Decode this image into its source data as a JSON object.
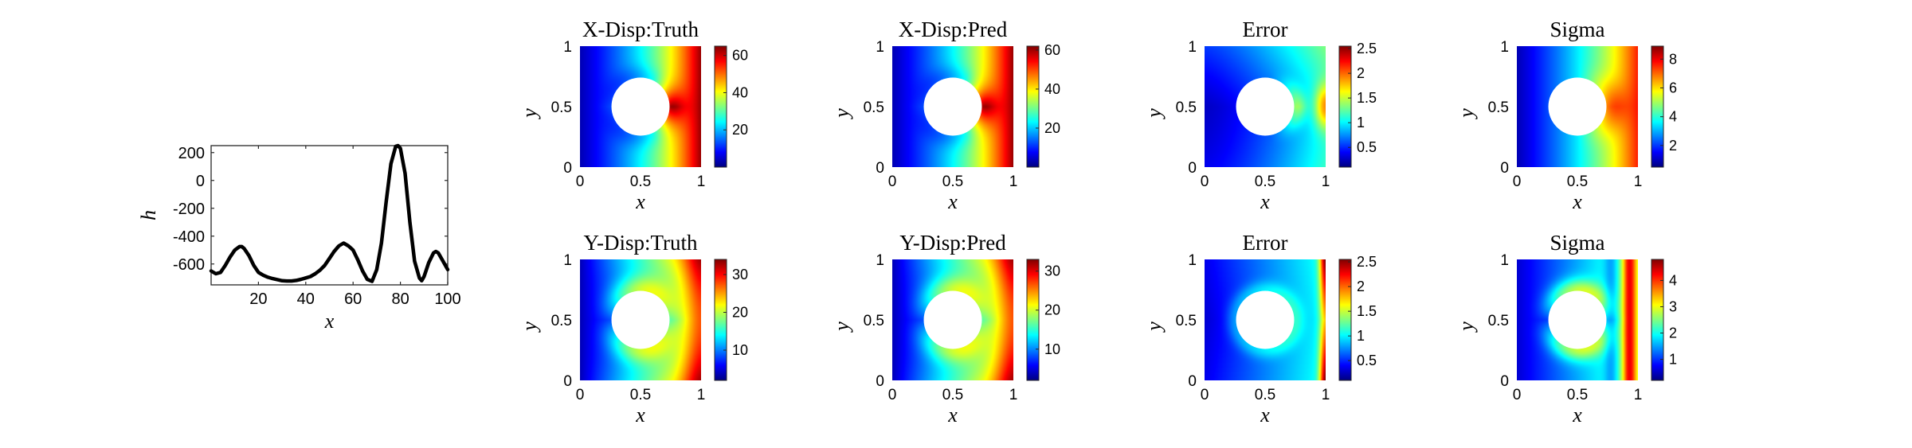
{
  "chart_data": [
    {
      "type": "line",
      "id": "h-profile",
      "xlabel": "x",
      "ylabel": "h",
      "xlim": [
        0,
        100
      ],
      "ylim": [
        -750,
        250
      ],
      "xticks": [
        20,
        40,
        60,
        80,
        100
      ],
      "yticks": [
        200,
        0,
        -200,
        -400,
        -600
      ],
      "grid": false,
      "series": [
        {
          "color": "#000000",
          "x": [
            0,
            2,
            4,
            6,
            8,
            10,
            12,
            13,
            14,
            16,
            18,
            20,
            22,
            24,
            26,
            28,
            30,
            32,
            34,
            36,
            38,
            40,
            42,
            44,
            46,
            48,
            50,
            52,
            54,
            56,
            58,
            59,
            60,
            62,
            64,
            66,
            68,
            70,
            72,
            74,
            76,
            78,
            79,
            80,
            82,
            84,
            86,
            88,
            89,
            90,
            92,
            94,
            95,
            96,
            98,
            100
          ],
          "values": [
            -650,
            -670,
            -660,
            -610,
            -550,
            -500,
            -475,
            -475,
            -490,
            -540,
            -610,
            -660,
            -680,
            -695,
            -705,
            -712,
            -720,
            -722,
            -722,
            -718,
            -710,
            -700,
            -690,
            -670,
            -645,
            -610,
            -560,
            -510,
            -470,
            -450,
            -470,
            -485,
            -500,
            -570,
            -650,
            -710,
            -725,
            -640,
            -450,
            -150,
            120,
            245,
            250,
            230,
            50,
            -300,
            -580,
            -700,
            -720,
            -690,
            -590,
            -520,
            -510,
            -520,
            -580,
            -640
          ]
        }
      ]
    },
    {
      "type": "heatmap",
      "id": "xdisp-truth",
      "title": "X-Disp:Truth",
      "xlabel": "x",
      "ylabel": "y",
      "xlim": [
        0,
        1
      ],
      "ylim": [
        0,
        1
      ],
      "xticks": [
        0,
        0.5,
        1
      ],
      "yticks": [
        0,
        0.5,
        1
      ],
      "colormap": "jet",
      "hole": {
        "cx": 0.5,
        "cy": 0.5,
        "r": 0.24
      },
      "clim": [
        0,
        65
      ],
      "colorbar_ticks": [
        20,
        40,
        60
      ],
      "field": "xdisp"
    },
    {
      "type": "heatmap",
      "id": "xdisp-pred",
      "title": "X-Disp:Pred",
      "xlabel": "x",
      "ylabel": "y",
      "xlim": [
        0,
        1
      ],
      "ylim": [
        0,
        1
      ],
      "xticks": [
        0,
        0.5,
        1
      ],
      "yticks": [
        0,
        0.5,
        1
      ],
      "colormap": "jet",
      "hole": {
        "cx": 0.5,
        "cy": 0.5,
        "r": 0.24
      },
      "clim": [
        0,
        62
      ],
      "colorbar_ticks": [
        20,
        40,
        60
      ],
      "field": "xdisp"
    },
    {
      "type": "heatmap",
      "id": "xdisp-error",
      "title": "Error",
      "xlabel": "x",
      "ylabel": "y",
      "xlim": [
        0,
        1
      ],
      "ylim": [
        0,
        1
      ],
      "xticks": [
        0,
        0.5,
        1
      ],
      "yticks": [
        0,
        0.5,
        1
      ],
      "colormap": "jet",
      "hole": {
        "cx": 0.5,
        "cy": 0.5,
        "r": 0.24
      },
      "clim": [
        0.1,
        2.55
      ],
      "colorbar_ticks": [
        0.5,
        1,
        1.5,
        2,
        2.5
      ],
      "field": "xerr"
    },
    {
      "type": "heatmap",
      "id": "xdisp-sigma",
      "title": "Sigma",
      "xlabel": "x",
      "ylabel": "y",
      "xlim": [
        0,
        1
      ],
      "ylim": [
        0,
        1
      ],
      "xticks": [
        0,
        0.5,
        1
      ],
      "yticks": [
        0,
        0.5,
        1
      ],
      "colormap": "jet",
      "hole": {
        "cx": 0.5,
        "cy": 0.5,
        "r": 0.24
      },
      "clim": [
        0.5,
        8.9
      ],
      "colorbar_ticks": [
        2,
        4,
        6,
        8
      ],
      "field": "xsig"
    },
    {
      "type": "heatmap",
      "id": "ydisp-truth",
      "title": "Y-Disp:Truth",
      "xlabel": "x",
      "ylabel": "y",
      "xlim": [
        0,
        1
      ],
      "ylim": [
        0,
        1
      ],
      "xticks": [
        0,
        0.5,
        1
      ],
      "yticks": [
        0,
        0.5,
        1
      ],
      "colormap": "jet",
      "hole": {
        "cx": 0.5,
        "cy": 0.5,
        "r": 0.24
      },
      "clim": [
        2,
        34
      ],
      "colorbar_ticks": [
        10,
        20,
        30
      ],
      "field": "ydisp"
    },
    {
      "type": "heatmap",
      "id": "ydisp-pred",
      "title": "Y-Disp:Pred",
      "xlabel": "x",
      "ylabel": "y",
      "xlim": [
        0,
        1
      ],
      "ylim": [
        0,
        1
      ],
      "xticks": [
        0,
        0.5,
        1
      ],
      "yticks": [
        0,
        0.5,
        1
      ],
      "colormap": "jet",
      "hole": {
        "cx": 0.5,
        "cy": 0.5,
        "r": 0.24
      },
      "clim": [
        2,
        33
      ],
      "colorbar_ticks": [
        10,
        20,
        30
      ],
      "field": "ydisp"
    },
    {
      "type": "heatmap",
      "id": "ydisp-error",
      "title": "Error",
      "xlabel": "x",
      "ylabel": "y",
      "xlim": [
        0,
        1
      ],
      "ylim": [
        0,
        1
      ],
      "xticks": [
        0,
        0.5,
        1
      ],
      "yticks": [
        0,
        0.5,
        1
      ],
      "colormap": "jet",
      "hole": {
        "cx": 0.5,
        "cy": 0.5,
        "r": 0.24
      },
      "clim": [
        0.1,
        2.55
      ],
      "colorbar_ticks": [
        0.5,
        1,
        1.5,
        2,
        2.5
      ],
      "field": "yerr"
    },
    {
      "type": "heatmap",
      "id": "ydisp-sigma",
      "title": "Sigma",
      "xlabel": "x",
      "ylabel": "y",
      "xlim": [
        0,
        1
      ],
      "ylim": [
        0,
        1
      ],
      "xticks": [
        0,
        0.5,
        1
      ],
      "yticks": [
        0,
        0.5,
        1
      ],
      "colormap": "jet",
      "hole": {
        "cx": 0.5,
        "cy": 0.5,
        "r": 0.24
      },
      "clim": [
        0.2,
        4.8
      ],
      "colorbar_ticks": [
        1,
        2,
        3,
        4
      ],
      "field": "ysig"
    }
  ]
}
